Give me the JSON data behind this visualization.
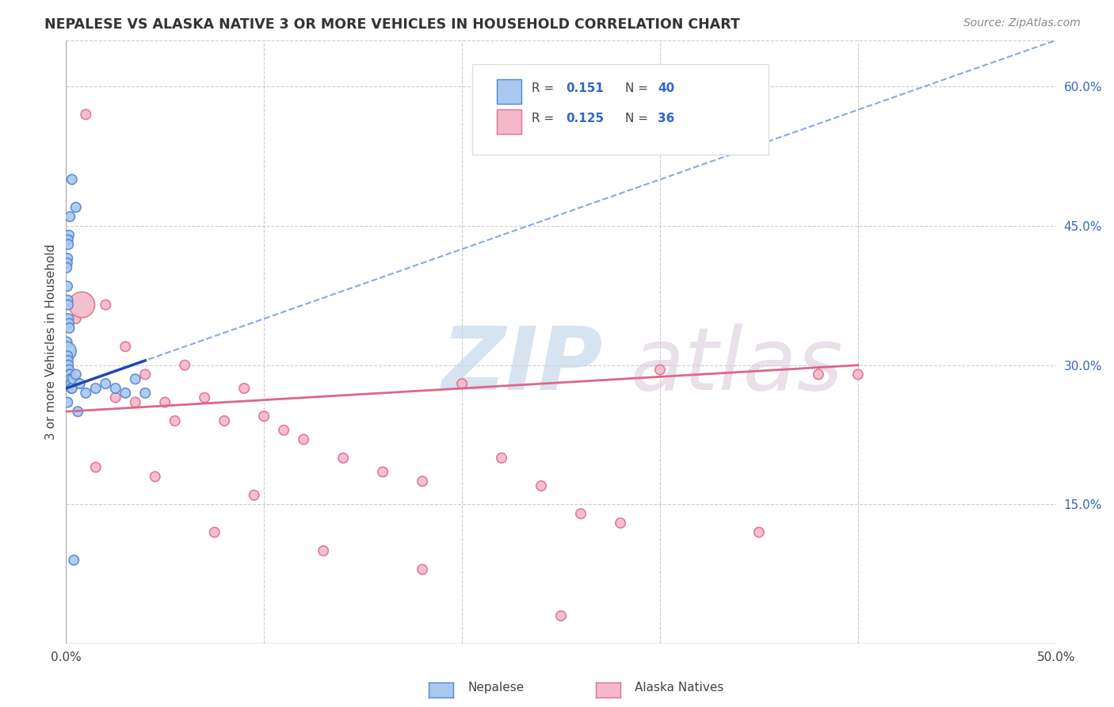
{
  "title": "NEPALESE VS ALASKA NATIVE 3 OR MORE VEHICLES IN HOUSEHOLD CORRELATION CHART",
  "source": "Source: ZipAtlas.com",
  "ylabel": "3 or more Vehicles in Household",
  "xlim": [
    0.0,
    50.0
  ],
  "ylim": [
    0.0,
    65.0
  ],
  "yticks_right": [
    15.0,
    30.0,
    45.0,
    60.0
  ],
  "yticks_right_labels": [
    "15.0%",
    "30.0%",
    "45.0%",
    "60.0%"
  ],
  "grid_color": "#cccccc",
  "background_color": "#ffffff",
  "nepalese_color": "#a8c8f0",
  "alaska_color": "#f5b8cb",
  "nepalese_edge": "#5588cc",
  "alaska_edge": "#e07090",
  "blue_line_color": "#2244bb",
  "blue_dash_color": "#88aadd",
  "pink_line_color": "#dd6688",
  "legend_r1": "R = 0.151",
  "legend_n1": "N = 40",
  "legend_r2": "R = 0.125",
  "legend_n2": "N = 36",
  "legend_label1": "Nepalese",
  "legend_label2": "Alaska Natives",
  "watermark_zip": "ZIP",
  "watermark_atlas": "atlas",
  "nepalese_x": [
    0.3,
    0.5,
    0.2,
    0.15,
    0.1,
    0.12,
    0.08,
    0.06,
    0.04,
    0.07,
    0.09,
    0.11,
    0.13,
    0.15,
    0.17,
    0.05,
    0.03,
    0.08,
    0.1,
    0.12,
    0.15,
    0.18,
    0.2,
    0.22,
    0.25,
    0.28,
    0.3,
    0.35,
    0.5,
    0.7,
    1.0,
    1.5,
    2.0,
    2.5,
    3.0,
    3.5,
    4.0,
    0.4,
    0.6,
    0.08
  ],
  "nepalese_y": [
    50.0,
    47.0,
    46.0,
    44.0,
    43.5,
    43.0,
    41.5,
    41.0,
    40.5,
    38.5,
    37.0,
    36.5,
    35.0,
    34.5,
    34.0,
    32.5,
    31.5,
    31.0,
    30.5,
    30.0,
    29.5,
    29.0,
    29.0,
    28.5,
    28.0,
    27.5,
    27.5,
    28.5,
    29.0,
    28.0,
    27.0,
    27.5,
    28.0,
    27.5,
    27.0,
    28.5,
    27.0,
    9.0,
    25.0,
    26.0
  ],
  "nepalese_size": [
    80,
    80,
    80,
    80,
    80,
    80,
    80,
    80,
    80,
    80,
    80,
    80,
    80,
    80,
    80,
    80,
    300,
    80,
    80,
    80,
    80,
    80,
    80,
    80,
    80,
    80,
    80,
    80,
    80,
    80,
    80,
    80,
    80,
    80,
    80,
    80,
    80,
    80,
    80,
    80
  ],
  "alaska_x": [
    1.0,
    2.0,
    3.0,
    4.0,
    5.0,
    6.0,
    7.0,
    8.0,
    9.0,
    10.0,
    11.0,
    12.0,
    14.0,
    16.0,
    18.0,
    20.0,
    22.0,
    24.0,
    26.0,
    28.0,
    30.0,
    35.0,
    40.0,
    0.5,
    1.5,
    2.5,
    4.5,
    7.5,
    13.0,
    38.0,
    0.8,
    3.5,
    5.5,
    9.5,
    18.0,
    25.0
  ],
  "alaska_y": [
    57.0,
    36.5,
    32.0,
    29.0,
    26.0,
    30.0,
    26.5,
    24.0,
    27.5,
    24.5,
    23.0,
    22.0,
    20.0,
    18.5,
    17.5,
    28.0,
    20.0,
    17.0,
    14.0,
    13.0,
    29.5,
    12.0,
    29.0,
    35.0,
    19.0,
    26.5,
    18.0,
    12.0,
    10.0,
    29.0,
    36.5,
    26.0,
    24.0,
    16.0,
    8.0,
    3.0
  ],
  "alaska_size": [
    80,
    80,
    80,
    80,
    80,
    80,
    80,
    80,
    80,
    80,
    80,
    80,
    80,
    80,
    80,
    80,
    80,
    80,
    80,
    80,
    80,
    80,
    80,
    80,
    80,
    80,
    80,
    80,
    80,
    80,
    550,
    80,
    80,
    80,
    80,
    80
  ],
  "blue_line_x0": 0.0,
  "blue_line_y0": 27.5,
  "blue_line_x1": 4.0,
  "blue_line_y1": 30.5,
  "blue_dash_x0": 0.0,
  "blue_dash_y0": 27.5,
  "blue_dash_x1": 50.0,
  "blue_dash_y1": 65.0,
  "pink_line_x0": 0.0,
  "pink_line_y0": 25.0,
  "pink_line_x1": 40.0,
  "pink_line_y1": 30.0
}
